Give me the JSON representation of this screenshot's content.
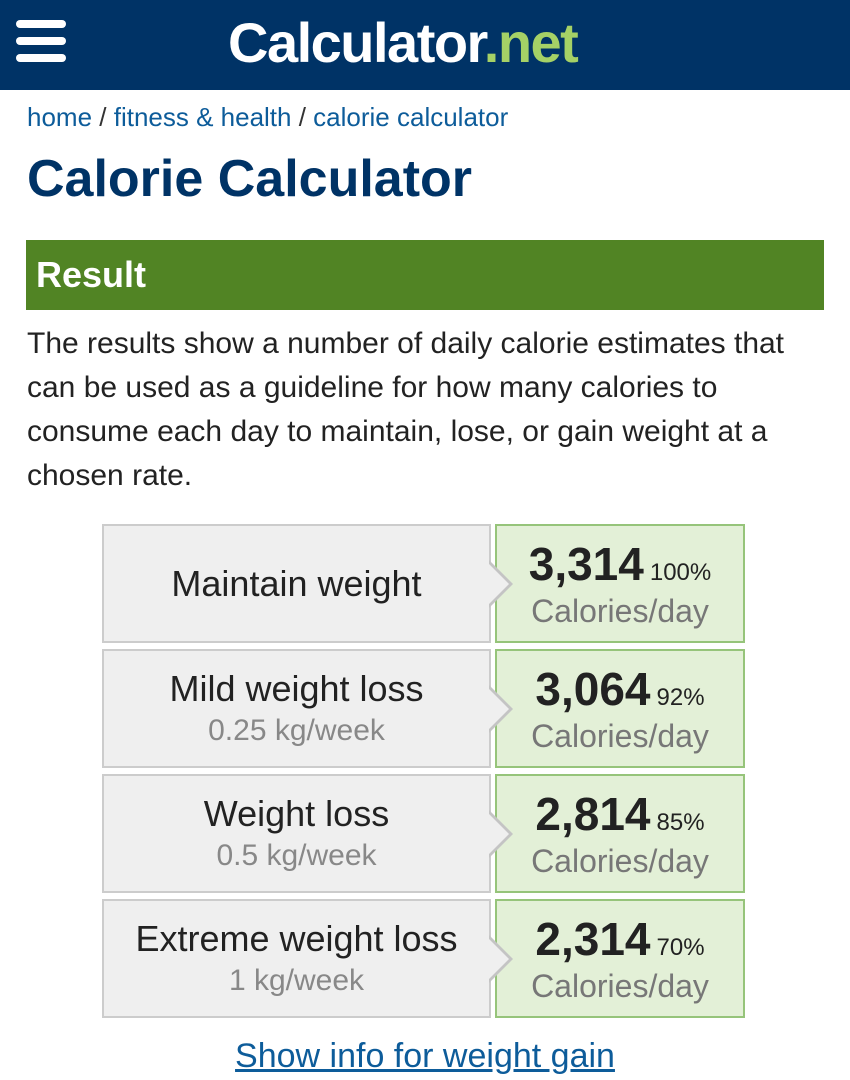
{
  "header": {
    "logo_main": "Calculator",
    "logo_suffix": ".net",
    "menu_icon": "hamburger-menu-icon"
  },
  "breadcrumb": {
    "items": [
      "home",
      "fitness & health",
      "calorie calculator"
    ],
    "separator": " / "
  },
  "page_title": "Calorie Calculator",
  "result": {
    "heading": "Result",
    "description": "The results show a number of daily calorie estimates that can be used as a guideline for how many calories to consume each day to maintain, lose, or gain weight at a chosen rate.",
    "unit_label": "Calories/day",
    "rows": [
      {
        "label": "Maintain weight",
        "rate": "",
        "calories": "3,314",
        "percent": "100%"
      },
      {
        "label": "Mild weight loss",
        "rate": "0.25 kg/week",
        "calories": "3,064",
        "percent": "92%"
      },
      {
        "label": "Weight loss",
        "rate": "0.5 kg/week",
        "calories": "2,814",
        "percent": "85%"
      },
      {
        "label": "Extreme weight loss",
        "rate": "1 kg/week",
        "calories": "2,314",
        "percent": "70%"
      }
    ],
    "gain_link": "Show info for weight gain"
  },
  "colors": {
    "header_bg": "#003366",
    "logo_accent": "#a5d166",
    "result_bar": "#518424",
    "link": "#0d5c9a",
    "value_cell_bg": "#e3f0d7"
  }
}
